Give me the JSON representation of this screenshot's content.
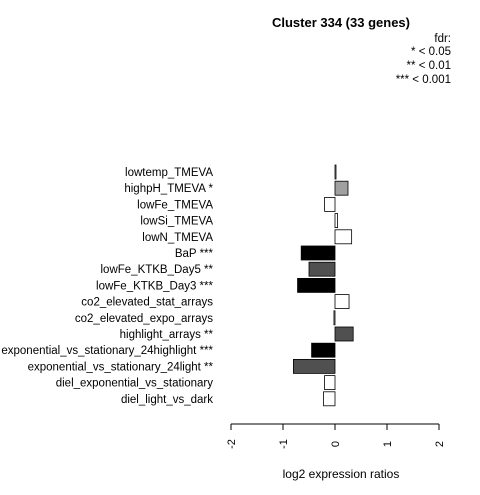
{
  "chart_data": {
    "type": "bar",
    "orientation": "horizontal",
    "title": "Cluster 334 (33 genes)",
    "xlabel": "log2 expression ratios",
    "xlim": [
      -2,
      2
    ],
    "xticks": [
      "-2",
      "-1",
      "0",
      "1",
      "2"
    ],
    "grid": false,
    "legend": {
      "position": "top-right",
      "lines": [
        "fdr:",
        "* < 0.05",
        "** < 0.01",
        "*** < 0.001"
      ]
    },
    "categories": [
      "lowtemp_TMEVA",
      "highpH_TMEVA *",
      "lowFe_TMEVA",
      "lowSi_TMEVA",
      "lowN_TMEVA",
      "BaP ***",
      "lowFe_KTKB_Day5 **",
      "lowFe_KTKB_Day3 ***",
      "co2_elevated_stat_arrays",
      "co2_elevated_expo_arrays",
      "highlight_arrays **",
      "exponential_vs_stationary_24highlight ***",
      "exponential_vs_stationary_24light **",
      "diel_exponential_vs_stationary",
      "diel_light_vs_dark"
    ],
    "values": [
      0.01,
      0.25,
      -0.2,
      0.05,
      0.32,
      -0.65,
      -0.5,
      -0.72,
      0.27,
      -0.02,
      0.35,
      -0.45,
      -0.8,
      -0.2,
      -0.22
    ],
    "colors": [
      "#ffffff",
      "#a0a0a0",
      "#ffffff",
      "#ffffff",
      "#ffffff",
      "#000000",
      "#505050",
      "#000000",
      "#ffffff",
      "#ffffff",
      "#505050",
      "#000000",
      "#505050",
      "#ffffff",
      "#ffffff"
    ]
  }
}
